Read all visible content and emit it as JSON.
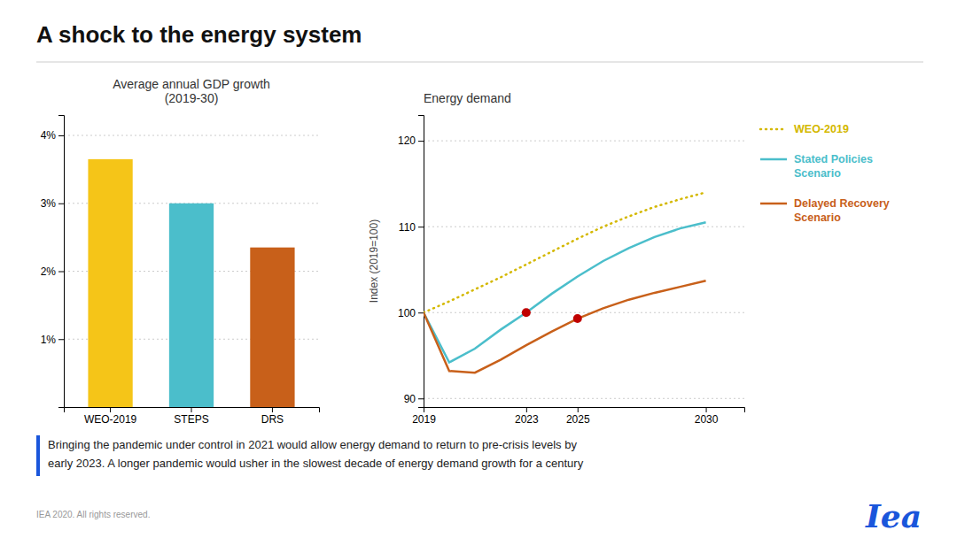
{
  "title": "A shock to the energy system",
  "annotations": [
    "Bringing the pandemic under control in 2021 would allow energy demand to return to pre-crisis levels by",
    "early 2023. A longer pandemic would usher in the slowest decade of energy demand growth for a century",
    "IEA 2020. All rights reserved.",
    "Iea"
  ],
  "chart_data": [
    {
      "type": "bar",
      "title": "Average annual GDP growth\n(2019-30)",
      "categories": [
        "WEO-2019",
        "STEPS",
        "DRS"
      ],
      "values": [
        3.65,
        3.0,
        2.35
      ],
      "colors": [
        "#F5C518",
        "#4BBECB",
        "#C8601A"
      ],
      "ylim": [
        0,
        4.3
      ],
      "yticks": [
        {
          "value": 1,
          "label": "1%"
        },
        {
          "value": 2,
          "label": "2%"
        },
        {
          "value": 3,
          "label": "3%"
        },
        {
          "value": 4,
          "label": "4%"
        }
      ],
      "grid": true
    },
    {
      "type": "line",
      "title": "Energy demand",
      "y_label": "Index (2019=100)",
      "x": [
        2019,
        2020,
        2021,
        2022,
        2023,
        2024,
        2025,
        2026,
        2027,
        2028,
        2029,
        2030
      ],
      "xlim": [
        2019,
        2031.5
      ],
      "xticks": [
        2019,
        2023,
        2025,
        2030
      ],
      "ylim": [
        89,
        123
      ],
      "yticks": [
        90,
        100,
        110,
        120
      ],
      "grid": true,
      "legend": "right",
      "series": [
        {
          "name": "WEO-2019",
          "color": "#D4B800",
          "line_style": "dotted",
          "values": [
            100,
            101.3,
            102.7,
            104.1,
            105.6,
            107.1,
            108.6,
            110.0,
            111.2,
            112.3,
            113.2,
            114.0
          ]
        },
        {
          "name": "Stated Policies\nScenario",
          "color": "#4BBECB",
          "line_style": "solid",
          "values": [
            100,
            94.2,
            95.8,
            98.0,
            100.0,
            102.2,
            104.2,
            106.0,
            107.5,
            108.8,
            109.8,
            110.5
          ]
        },
        {
          "name": "Delayed Recovery\nScenario",
          "color": "#C8601A",
          "line_style": "solid",
          "values": [
            100,
            93.2,
            93.0,
            94.5,
            96.2,
            97.8,
            99.3,
            100.5,
            101.5,
            102.3,
            103.0,
            103.7
          ]
        },
        {
          "type": "scatter",
          "color": "#C00000",
          "marker": "circle",
          "x": [
            2023,
            2025
          ],
          "values": [
            100.0,
            99.3
          ]
        }
      ]
    }
  ]
}
